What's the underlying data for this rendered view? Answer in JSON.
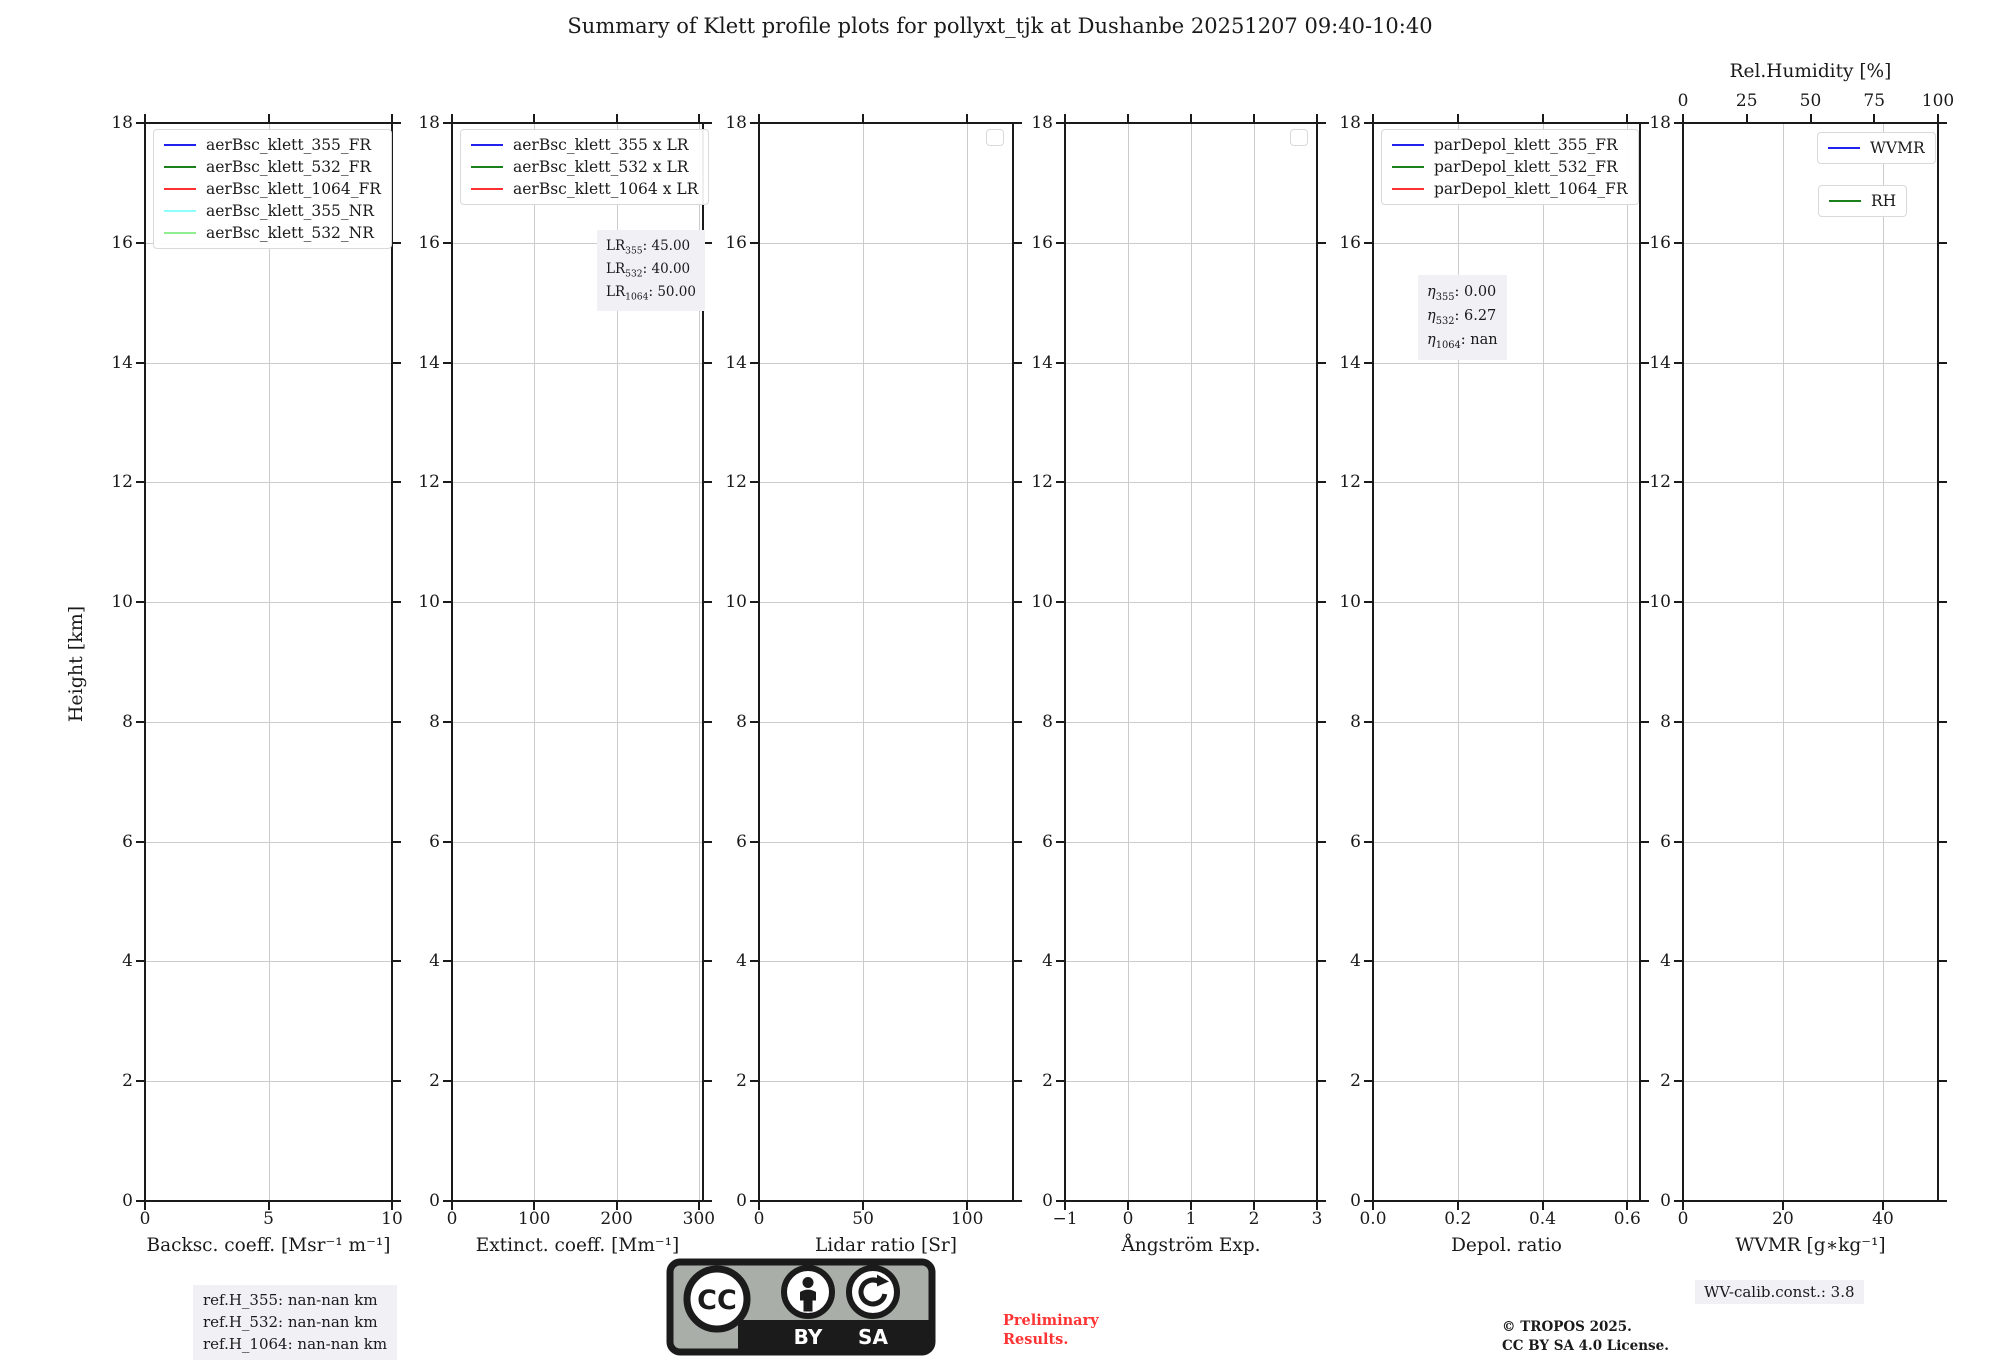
{
  "title": "Summary of Klett profile plots for pollyxt_tjk at Dushanbe 20251207 09:40-10:40",
  "yaxis": {
    "label": "Height [km]",
    "lim": [
      0,
      18
    ],
    "tick_values": [
      0,
      2,
      4,
      6,
      8,
      10,
      12,
      14,
      16,
      18
    ],
    "tick_labels": [
      "0",
      "2",
      "4",
      "6",
      "8",
      "10",
      "12",
      "14",
      "16",
      "18"
    ]
  },
  "colors": {
    "blue": "#2222EE",
    "green": "#1B801B",
    "red": "#FF3030",
    "cyan": "#8CFFFF",
    "lightgreen": "#90EE90",
    "grid": "#CCCCCC",
    "annotation_bg": "#F0F0F5",
    "preliminary_red": "#FF3333"
  },
  "chart_data": [
    {
      "id": "backscatter",
      "type": "line",
      "xlabel": "Backsc. coeff. [Msr⁻¹ m⁻¹]",
      "xlim": [
        0,
        10
      ],
      "xtick_values": [
        0,
        5,
        10
      ],
      "xtick_labels": [
        "0",
        "5",
        "10"
      ],
      "grid": true,
      "legend_position": "upper left",
      "series": [
        {
          "name": "aerBsc_klett_355_FR",
          "color": "#2222EE",
          "x": [],
          "y": []
        },
        {
          "name": "aerBsc_klett_532_FR",
          "color": "#1B801B",
          "x": [],
          "y": []
        },
        {
          "name": "aerBsc_klett_1064_FR",
          "color": "#FF3030",
          "x": [],
          "y": []
        },
        {
          "name": "aerBsc_klett_355_NR",
          "color": "#8CFFFF",
          "x": [],
          "y": []
        },
        {
          "name": "aerBsc_klett_532_NR",
          "color": "#90EE90",
          "x": [],
          "y": []
        }
      ]
    },
    {
      "id": "extinction",
      "type": "line",
      "xlabel": "Extinct. coeff. [Mm⁻¹]",
      "xlim": [
        0,
        305
      ],
      "xtick_values": [
        0,
        100,
        200,
        300
      ],
      "xtick_labels": [
        "0",
        "100",
        "200",
        "300"
      ],
      "grid": true,
      "legend_position": "upper left",
      "series": [
        {
          "name": "aerBsc_klett_355 x LR",
          "color": "#2222EE",
          "x": [],
          "y": []
        },
        {
          "name": "aerBsc_klett_532 x LR",
          "color": "#1B801B",
          "x": [],
          "y": []
        },
        {
          "name": "aerBsc_klett_1064 x LR",
          "color": "#FF3030",
          "x": [],
          "y": []
        }
      ],
      "annotation": {
        "italic_head": false,
        "lines": [
          {
            "head": "LR",
            "sub": "355",
            "text": ": 45.00"
          },
          {
            "head": "LR",
            "sub": "532",
            "text": ": 40.00"
          },
          {
            "head": "LR",
            "sub": "1064",
            "text": ": 50.00"
          }
        ]
      }
    },
    {
      "id": "lidar-ratio",
      "type": "line",
      "xlabel": "Lidar ratio [Sr]",
      "xlim": [
        0,
        122
      ],
      "xtick_values": [
        0,
        50,
        100
      ],
      "xtick_labels": [
        "0",
        "50",
        "100"
      ],
      "grid": true,
      "empty_legend": true,
      "series": []
    },
    {
      "id": "angstrom",
      "type": "line",
      "xlabel": "Ångström Exp.",
      "xlim": [
        -1,
        3
      ],
      "xtick_values": [
        -1,
        0,
        1,
        2,
        3
      ],
      "xtick_labels": [
        "−1",
        "0",
        "1",
        "2",
        "3"
      ],
      "grid": true,
      "empty_legend": true,
      "series": []
    },
    {
      "id": "depol",
      "type": "line",
      "xlabel": "Depol. ratio",
      "xlim": [
        0,
        0.63
      ],
      "xtick_values": [
        0,
        0.2,
        0.4,
        0.6
      ],
      "xtick_labels": [
        "0.0",
        "0.2",
        "0.4",
        "0.6"
      ],
      "grid": true,
      "legend_position": "upper left",
      "series": [
        {
          "name": "parDepol_klett_355_FR",
          "color": "#2222EE",
          "x": [],
          "y": []
        },
        {
          "name": "parDepol_klett_532_FR",
          "color": "#1B801B",
          "x": [],
          "y": []
        },
        {
          "name": "parDepol_klett_1064_FR",
          "color": "#FF3030",
          "x": [],
          "y": []
        }
      ],
      "annotation": {
        "italic_head": true,
        "lines": [
          {
            "head": "η",
            "sub": "355",
            "text": ": 0.00"
          },
          {
            "head": "η",
            "sub": "532",
            "text": ": 6.27"
          },
          {
            "head": "η",
            "sub": "1064",
            "text": ": nan"
          }
        ]
      }
    },
    {
      "id": "wvmr",
      "type": "line",
      "xlabel": "WVMR [g∗kg⁻¹]",
      "xlim": [
        0,
        51
      ],
      "xtick_values": [
        0,
        20,
        40
      ],
      "xtick_labels": [
        "0",
        "20",
        "40"
      ],
      "grid": true,
      "separate_legend_boxes": true,
      "series": [
        {
          "name": "WVMR",
          "color": "#2222EE",
          "x": [],
          "y": []
        },
        {
          "name": "RH",
          "color": "#1B801B",
          "x": [],
          "y": []
        }
      ],
      "top_axis": {
        "label": "Rel.Humidity [%]",
        "lim": [
          0,
          100
        ],
        "tick_values": [
          0,
          25,
          50,
          75,
          100
        ],
        "tick_labels": [
          "0",
          "25",
          "50",
          "75",
          "100"
        ]
      }
    }
  ],
  "footer": {
    "ref_lines": [
      "ref.H_355: nan-nan km",
      "ref.H_532: nan-nan km",
      "ref.H_1064: nan-nan km"
    ],
    "preliminary": [
      "Preliminary",
      "Results."
    ],
    "copyright": [
      "© TROPOS 2025.",
      "CC BY SA 4.0 License."
    ],
    "wv_calib": "WV-calib.const.: 3.8",
    "badge": {
      "cc": "CC",
      "by": "BY",
      "sa": "SA"
    }
  }
}
